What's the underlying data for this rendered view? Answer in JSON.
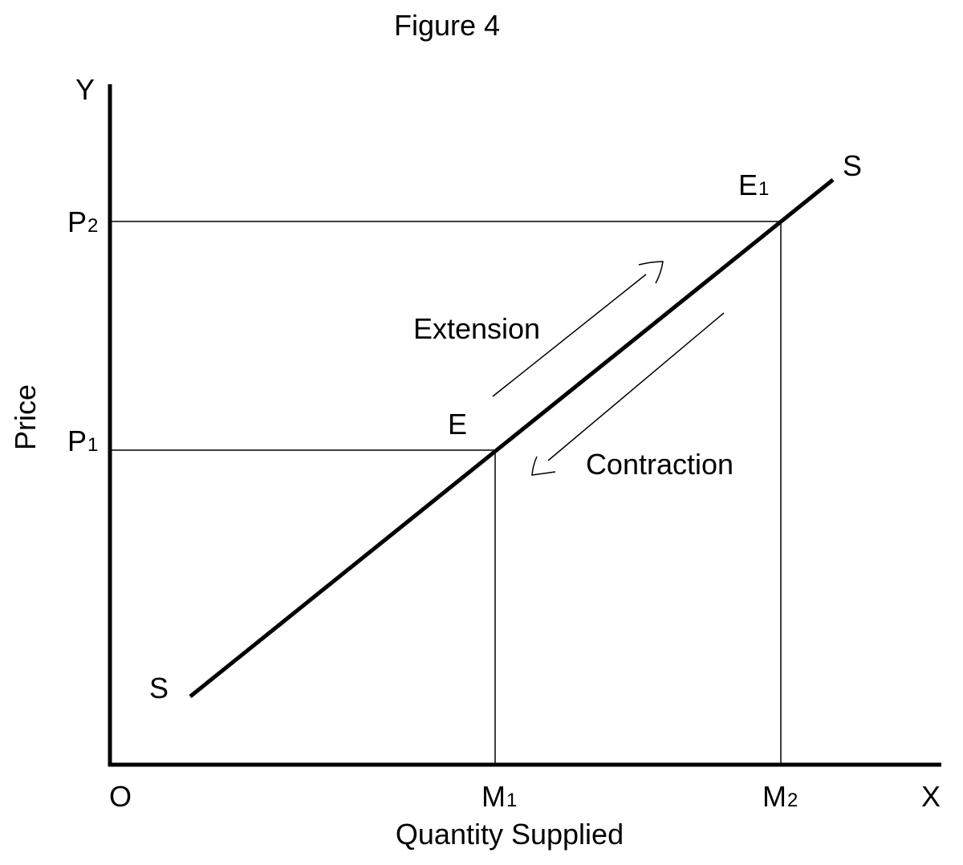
{
  "title": "Figure 4",
  "axes": {
    "y_label": "Y",
    "x_label": "X",
    "origin_label": "O",
    "y_title": "Price",
    "x_title": "Quantity Supplied"
  },
  "price_levels": [
    {
      "label": "P",
      "sub": "2"
    },
    {
      "label": "P",
      "sub": "1"
    }
  ],
  "quantity_levels": [
    {
      "label": "M",
      "sub": "1"
    },
    {
      "label": "M",
      "sub": "2"
    }
  ],
  "curve": {
    "start_label": "S",
    "end_label": "S"
  },
  "points": [
    {
      "label": "E",
      "sub": ""
    },
    {
      "label": "E",
      "sub": "1"
    }
  ],
  "movements": {
    "up": "Extension",
    "down": "Contraction"
  }
}
